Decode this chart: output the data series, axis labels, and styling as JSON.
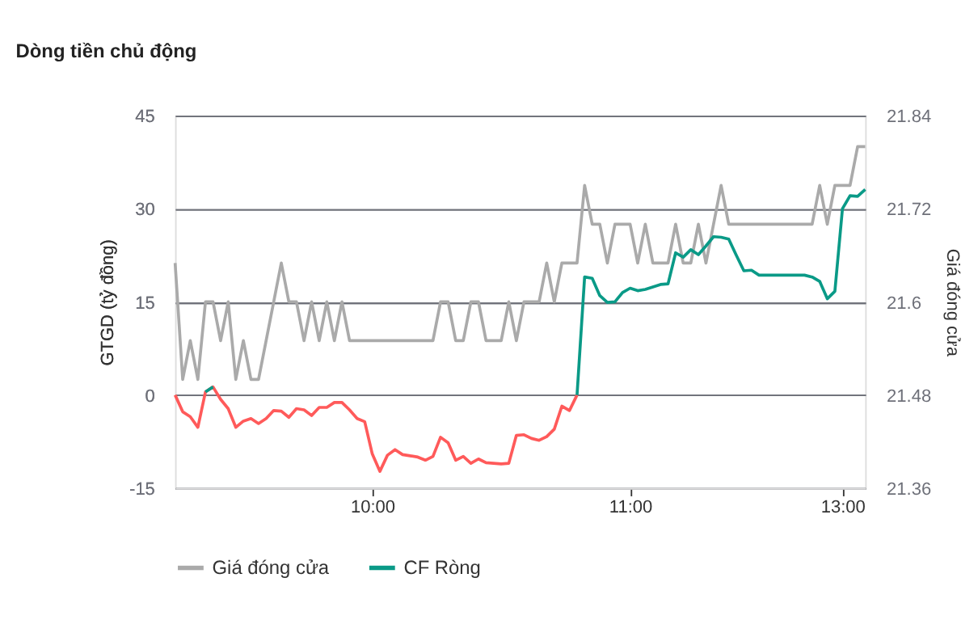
{
  "chart_data": {
    "type": "line",
    "title": "Dòng tiền chủ động",
    "ylabel": "GTGD (tỷ đồng)",
    "y2label": "Giá đóng cửa",
    "categories": [
      null,
      null,
      null,
      null,
      null,
      null,
      null,
      null,
      null,
      null,
      null,
      null,
      null,
      null,
      null,
      null,
      null,
      null,
      null,
      null,
      null,
      null,
      null,
      null,
      null,
      null,
      "10:00",
      null,
      null,
      null,
      null,
      null,
      null,
      null,
      null,
      null,
      null,
      null,
      null,
      null,
      null,
      null,
      null,
      null,
      null,
      null,
      null,
      null,
      null,
      null,
      null,
      null,
      null,
      null,
      null,
      null,
      null,
      null,
      null,
      null,
      "11:00",
      null,
      null,
      null,
      null,
      null,
      null,
      null,
      null,
      null,
      null,
      null,
      null,
      null,
      null,
      null,
      null,
      null,
      null,
      null,
      null,
      null,
      null,
      null,
      null,
      null,
      null,
      null,
      "13:00",
      null,
      null,
      null
    ],
    "series": [
      {
        "name": "Giá đóng cửa",
        "color": "#aaaaaa",
        "axis": "y2",
        "values": [
          21.65,
          21.5,
          21.55,
          21.5,
          21.6,
          21.6,
          21.55,
          21.6,
          21.5,
          21.55,
          21.5,
          21.5,
          21.55,
          21.6,
          21.65,
          21.6,
          21.6,
          21.55,
          21.6,
          21.55,
          21.6,
          21.55,
          21.6,
          21.55,
          21.55,
          21.55,
          21.55,
          21.55,
          21.55,
          21.55,
          21.55,
          21.55,
          21.55,
          21.55,
          21.55,
          21.6,
          21.6,
          21.55,
          21.55,
          21.6,
          21.6,
          21.55,
          21.55,
          21.55,
          21.6,
          21.55,
          21.6,
          21.6,
          21.6,
          21.65,
          21.6,
          21.65,
          21.65,
          21.65,
          21.75,
          21.7,
          21.7,
          21.65,
          21.7,
          21.7,
          21.7,
          21.65,
          21.7,
          21.65,
          21.65,
          21.65,
          21.7,
          21.65,
          21.65,
          21.7,
          21.65,
          21.7,
          21.75,
          21.7,
          21.7,
          21.7,
          21.7,
          21.7,
          21.7,
          21.7,
          21.7,
          21.7,
          21.7,
          21.7,
          21.7,
          21.75,
          21.7,
          21.75,
          21.75,
          21.75,
          21.8,
          21.8
        ]
      },
      {
        "color": "#ff5a5a",
        "values": [
          0,
          -2.7,
          -3.5,
          -5.2,
          0.5,
          1.3,
          -0.7,
          -2.2,
          -5.2,
          -4.2,
          -3.8,
          -4.6,
          -3.8,
          -2.5,
          -2.6,
          -3.6,
          -2.2,
          -2.4,
          -3.3,
          -2.0,
          -2.0,
          -1.2,
          -1.2,
          -2.4,
          -3.8,
          -4.3,
          -9.5,
          -12.3,
          -9.7,
          -8.8,
          -9.6,
          -9.8,
          -10,
          -10.5,
          -9.9,
          -6.8,
          -7.7,
          -10.5,
          -9.9,
          -11.0,
          -10.3,
          -10.9,
          -11.0,
          -11.1,
          -11.0,
          -6.5,
          -6.4,
          -7.0,
          -7.3,
          -6.7,
          -5.5,
          -1.8,
          -2.5,
          0,
          null,
          null,
          null,
          null,
          null,
          null,
          null,
          null,
          null,
          null,
          null,
          null,
          null,
          null,
          null,
          null,
          null,
          null,
          null,
          null,
          null,
          null,
          null,
          null,
          null,
          null,
          null,
          null,
          null,
          null,
          null,
          null,
          null,
          null,
          null,
          null,
          null,
          null
        ]
      },
      {
        "name": "CF Ròng",
        "color": "#0a9a87",
        "values": [
          null,
          null,
          null,
          null,
          0.5,
          1.3,
          null,
          null,
          null,
          null,
          null,
          null,
          null,
          null,
          null,
          null,
          null,
          null,
          null,
          null,
          null,
          null,
          null,
          null,
          null,
          null,
          null,
          null,
          null,
          null,
          null,
          null,
          null,
          null,
          null,
          null,
          null,
          null,
          null,
          null,
          null,
          null,
          null,
          null,
          null,
          null,
          null,
          null,
          null,
          null,
          null,
          null,
          null,
          0,
          19,
          18.8,
          16,
          14.9,
          15.0,
          16.5,
          17.2,
          16.8,
          17.0,
          17.4,
          17.8,
          17.9,
          22.9,
          22.2,
          23.4,
          22.6,
          24.0,
          25.5,
          25.4,
          25.1,
          22.5,
          20,
          20.1,
          19.3,
          19.3,
          19.3,
          19.3,
          19.3,
          19.3,
          19.3,
          19.0,
          18.3,
          15.5,
          16.7,
          30,
          32.1,
          32,
          33.1
        ]
      }
    ],
    "ylim": [
      -15,
      45
    ],
    "yticks": [
      -15,
      0,
      15,
      30,
      45
    ],
    "y2lim": [
      21.36,
      21.84
    ],
    "y2ticks": [
      21.36,
      21.48,
      21.6,
      21.72,
      21.84
    ],
    "grid": "y",
    "legend": "bottom",
    "marker": "none",
    "line_style": "solid"
  }
}
